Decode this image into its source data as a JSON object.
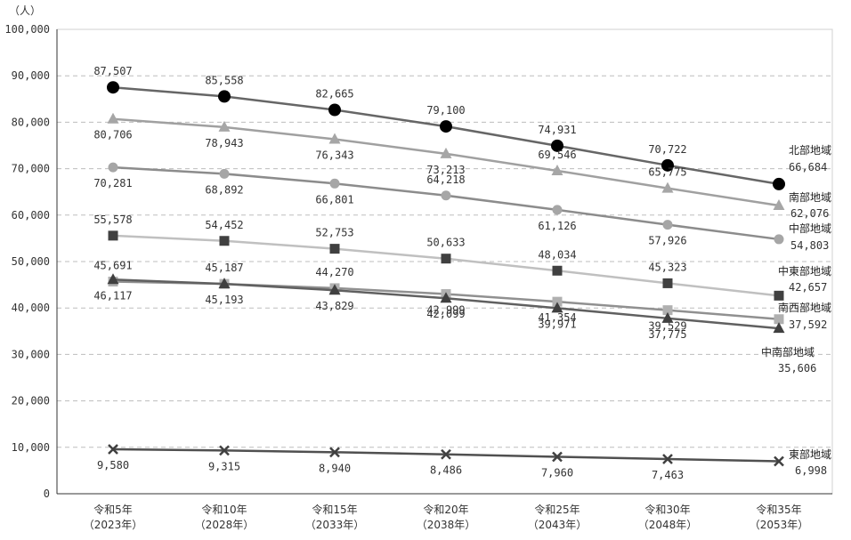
{
  "chart_data": {
    "type": "line",
    "ylabel": "（人）",
    "ylim": [
      0,
      100000
    ],
    "yticks": [
      0,
      10000,
      20000,
      30000,
      40000,
      50000,
      60000,
      70000,
      80000,
      90000,
      100000
    ],
    "ytick_labels": [
      "0",
      "10,000",
      "20,000",
      "30,000",
      "40,000",
      "50,000",
      "60,000",
      "70,000",
      "80,000",
      "90,000",
      "100,000"
    ],
    "grid": "horizontal-dashed",
    "categories": [
      {
        "era": "令和5年",
        "year": "（2023年）"
      },
      {
        "era": "令和10年",
        "year": "（2028年）"
      },
      {
        "era": "令和15年",
        "year": "（2033年）"
      },
      {
        "era": "令和20年",
        "year": "（2038年）"
      },
      {
        "era": "令和25年",
        "year": "（2043年）"
      },
      {
        "era": "令和30年",
        "year": "（2048年）"
      },
      {
        "era": "令和35年",
        "year": "（2053年）"
      }
    ],
    "series": [
      {
        "name": "北部地域",
        "color": "#666666",
        "marker": "circle",
        "marker_color": "#000000",
        "values": [
          87507,
          85558,
          82665,
          79100,
          74931,
          70722,
          66684
        ],
        "labels": [
          "87,507",
          "85,558",
          "82,665",
          "79,100",
          "74,931",
          "70,722",
          "66,684"
        ]
      },
      {
        "name": "南部地域",
        "color": "#a0a0a0",
        "marker": "triangle",
        "marker_color": "#a6a6a6",
        "values": [
          80706,
          78943,
          76343,
          73213,
          69546,
          65775,
          62076
        ],
        "labels": [
          "80,706",
          "78,943",
          "76,343",
          "73,213",
          "69,546",
          "65,775",
          "62,076"
        ]
      },
      {
        "name": "中部地域",
        "color": "#8c8c8c",
        "marker": "circle",
        "marker_color": "#a6a6a6",
        "values": [
          70281,
          68892,
          66801,
          64218,
          61126,
          57926,
          54803
        ],
        "labels": [
          "70,281",
          "68,892",
          "66,801",
          "64,218",
          "61,126",
          "57,926",
          "54,803"
        ]
      },
      {
        "name": "中東部地域",
        "color": "#c0c0c0",
        "marker": "square",
        "marker_color": "#404040",
        "values": [
          55578,
          54452,
          52753,
          50633,
          48034,
          45323,
          42657
        ],
        "labels": [
          "55,578",
          "54,452",
          "52,753",
          "50,633",
          "48,034",
          "45,323",
          "42,657"
        ]
      },
      {
        "name": "南西部地域",
        "color": "#909090",
        "marker": "square",
        "marker_color": "#b0b0b0",
        "values": [
          45691,
          45187,
          44270,
          42999,
          41354,
          39529,
          37592
        ],
        "labels": [
          "45,691",
          "45,187",
          "44,270",
          "42,999",
          "41,354",
          "39,529",
          "37,592"
        ]
      },
      {
        "name": "中南部地域",
        "color": "#606060",
        "marker": "triangle",
        "marker_color": "#404040",
        "values": [
          46117,
          45193,
          43829,
          42099,
          39971,
          37775,
          35606
        ],
        "labels": [
          "46,117",
          "45,193",
          "43,829",
          "42,099",
          "39,971",
          "37,775",
          "35,606"
        ]
      },
      {
        "name": "東部地域",
        "color": "#505050",
        "marker": "cross",
        "marker_color": "#404040",
        "values": [
          9580,
          9315,
          8940,
          8486,
          7960,
          7463,
          6998
        ],
        "labels": [
          "9,580",
          "9,315",
          "8,940",
          "8,486",
          "7,960",
          "7,463",
          "6,998"
        ]
      }
    ]
  }
}
